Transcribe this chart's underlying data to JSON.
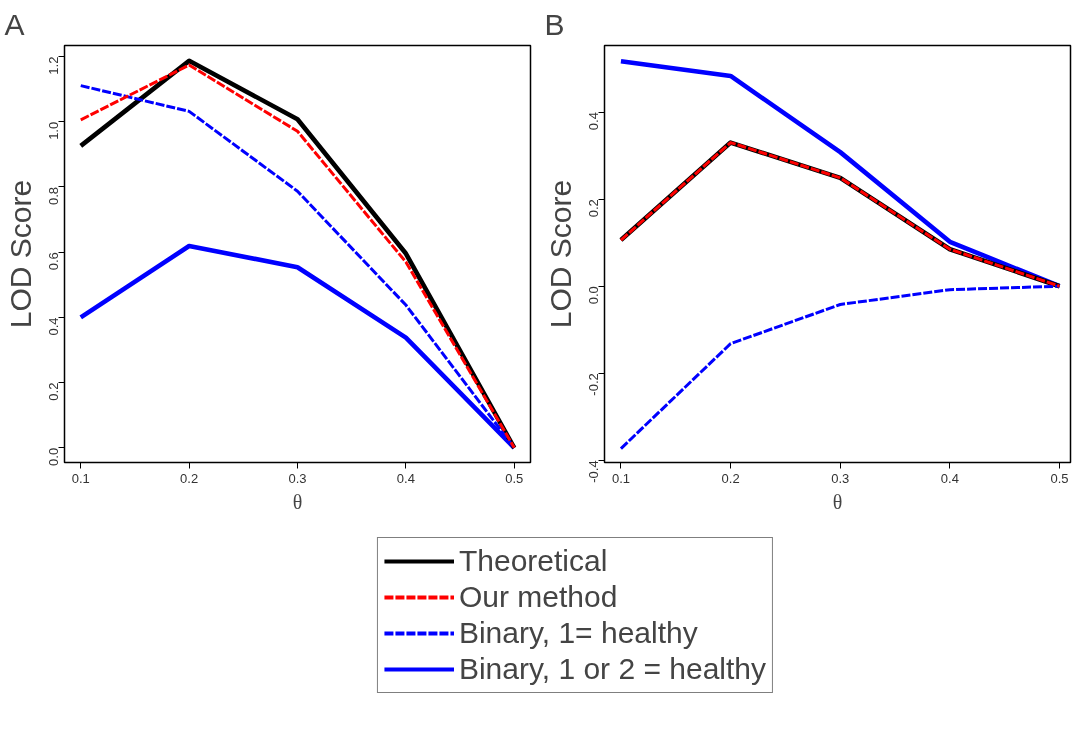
{
  "chart_data": [
    {
      "type": "line",
      "title": "A",
      "xlabel": "θ",
      "ylabel": "LOD Score",
      "x": [
        0.1,
        0.2,
        0.3,
        0.4,
        0.5
      ],
      "xlim": [
        0.085,
        0.515
      ],
      "xticks": [
        0.1,
        0.2,
        0.3,
        0.4,
        0.5
      ],
      "ylim": [
        -0.045,
        1.234
      ],
      "yticks": [
        {
          "value": 0,
          "label": "0.0"
        },
        0.2,
        0.4,
        0.6,
        0.8,
        {
          "value": 1,
          "label": "1.0"
        },
        1.2
      ],
      "grid": false,
      "legend": "bottom",
      "series": [
        {
          "name": "Theoretical",
          "color": "#000000",
          "line_style": "solid",
          "values": [
            0.926,
            1.187,
            1.008,
            0.596,
            0
          ]
        },
        {
          "name": "Our method",
          "color": "#ff0000",
          "line_style": "dashed",
          "values": [
            1.006,
            1.174,
            0.971,
            0.57,
            0
          ]
        },
        {
          "name": "Binary, 1= healthy",
          "color": "#0000ff",
          "line_style": "dashed",
          "values": [
            1.111,
            1.032,
            0.787,
            0.438,
            0
          ]
        },
        {
          "name": "Binary, 1 or 2 = healthy",
          "color": "#0000ff",
          "line_style": "solid",
          "values": [
            0.4,
            0.619,
            0.554,
            0.338,
            0
          ]
        }
      ]
    },
    {
      "type": "line",
      "title": "B",
      "xlabel": "θ",
      "ylabel": "LOD Score",
      "x": [
        0.1,
        0.2,
        0.3,
        0.4,
        0.5
      ],
      "xlim": [
        0.085,
        0.51
      ],
      "xticks": [
        0.1,
        0.2,
        0.3,
        0.4,
        0.5
      ],
      "ylim": [
        -0.405,
        0.553
      ],
      "yticks": [
        {
          "value": -0.4,
          "label": "-0.4"
        },
        {
          "value": -0.2,
          "label": "-0.2"
        },
        {
          "value": 0,
          "label": "0.0"
        },
        0.2,
        0.4
      ],
      "grid": false,
      "series": [
        {
          "color": "#000000",
          "line_style": "solid",
          "values": [
            0.106,
            0.33,
            0.249,
            0.085,
            0
          ]
        },
        {
          "color": "#ff0000",
          "line_style": "dashed",
          "values": [
            0.106,
            0.33,
            0.249,
            0.085,
            0
          ]
        },
        {
          "color": "#0000ff",
          "line_style": "dashed",
          "values": [
            -0.373,
            -0.132,
            -0.042,
            -0.008,
            0
          ]
        },
        {
          "color": "#0000ff",
          "line_style": "solid",
          "values": [
            0.517,
            0.483,
            0.308,
            0.102,
            0
          ]
        }
      ]
    }
  ]
}
